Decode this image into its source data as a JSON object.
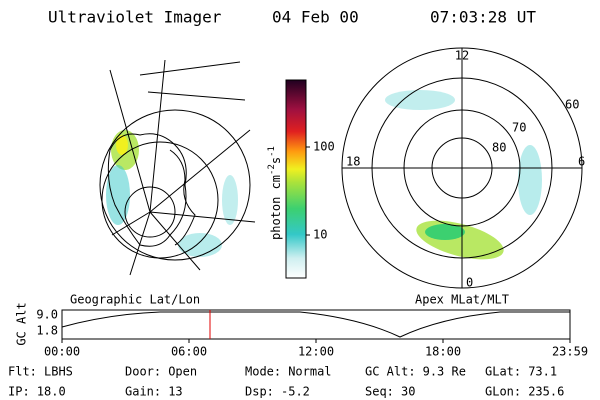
{
  "header": {
    "instrument": "Ultraviolet Imager",
    "date": "04 Feb 00",
    "time": "07:03:28 UT"
  },
  "colorbar": {
    "label": "photon cm",
    "exp1": "-2",
    "unit2": "s",
    "exp2": "-1",
    "ticks": [
      "100",
      "10"
    ]
  },
  "geographic_panel": {
    "label": "Geographic Lat/Lon"
  },
  "polar_panel": {
    "label": "Apex MLat/MLT",
    "mlt_labels": [
      "12",
      "18",
      "6",
      "0"
    ],
    "mlat_labels": [
      "60",
      "70",
      "80"
    ]
  },
  "altitude_plot": {
    "ylabel": "GC Alt",
    "yticks": [
      "9.0",
      "1.8"
    ],
    "xticks": [
      "00:00",
      "06:00",
      "12:00",
      "18:00",
      "23:59"
    ]
  },
  "status": [
    [
      {
        "label": "Flt:",
        "value": "LBHS"
      },
      {
        "label": "Door:",
        "value": "Open"
      },
      {
        "label": "Mode:",
        "value": "Normal"
      },
      {
        "label": "GC Alt:",
        "value": "9.3 Re"
      },
      {
        "label": "GLat:",
        "value": "73.1"
      }
    ],
    [
      {
        "label": "IP:",
        "value": "18.0"
      },
      {
        "label": "Gain:",
        "value": "13"
      },
      {
        "label": "Dsp:",
        "value": "-5.2"
      },
      {
        "label": "Seq:",
        "value": "30"
      },
      {
        "label": "GLon:",
        "value": "235.6"
      }
    ]
  ]
}
